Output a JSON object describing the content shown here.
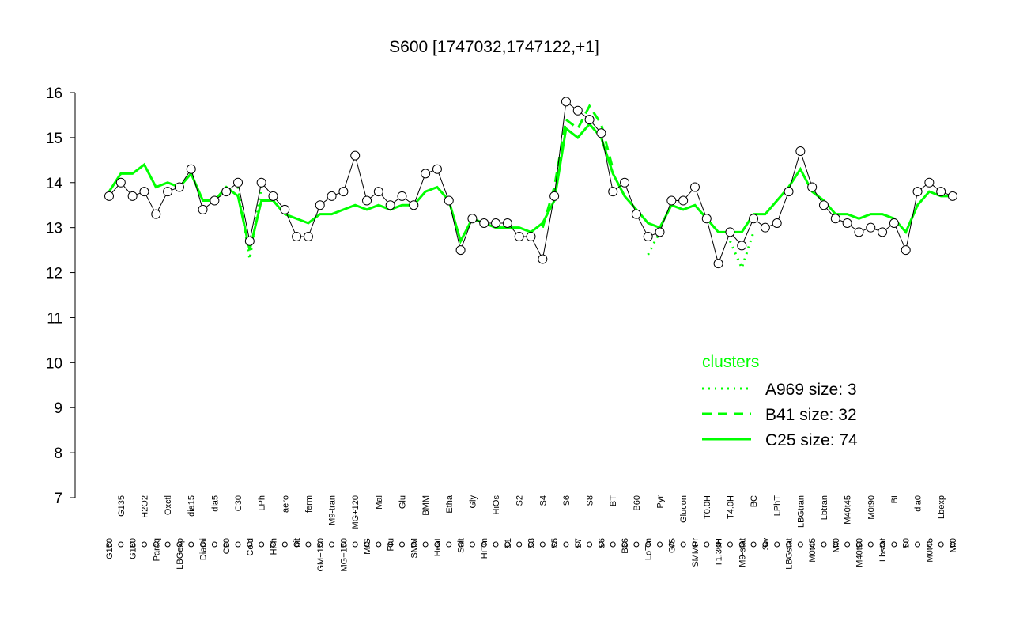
{
  "chart_data": {
    "type": "line",
    "title": "S600 [1747032,1747122,+1]",
    "categories": [
      "G150",
      "G135",
      "G180",
      "H2O2",
      "Paraq",
      "Oxctl",
      "LBGexp",
      "dia15",
      "Diami",
      "dia5",
      "C90",
      "C30",
      "Cold",
      "LPh",
      "HPh",
      "aero",
      "nit",
      "ferm",
      "GM+150",
      "M9-tran",
      "MG+150",
      "MG+120",
      "M/G",
      "Mal",
      "Fru",
      "Glu",
      "SMM",
      "BMM",
      "Heat",
      "Etha",
      "Salt",
      "Gly",
      "HiTm",
      "HiOs",
      "S1",
      "S2",
      "S3",
      "S4",
      "S5",
      "S6",
      "S7",
      "S8",
      "S6",
      "BT",
      "B36",
      "B60",
      "LoTm",
      "Pyr",
      "G/S",
      "Glucon",
      "SMMPr",
      "T0.0H",
      "T1.30H",
      "T4.0H",
      "M9-stat",
      "BC",
      "Sw",
      "LPhT",
      "LBGstat",
      "LBGtran",
      "M0t45",
      "Lbtran",
      "Mt0",
      "M40t45",
      "M40t90",
      "M0t90",
      "Lbstat",
      "BI",
      "S0",
      "dia0",
      "M0t45",
      "Lbexp",
      "Mt0"
    ],
    "values": [
      13.7,
      14.0,
      13.7,
      13.8,
      13.3,
      13.8,
      13.9,
      14.3,
      13.4,
      13.6,
      13.8,
      14.0,
      12.7,
      14.0,
      13.7,
      13.4,
      12.8,
      12.8,
      13.5,
      13.7,
      13.8,
      14.6,
      13.6,
      13.8,
      13.5,
      13.7,
      13.5,
      14.2,
      14.3,
      13.6,
      12.5,
      13.2,
      13.1,
      13.1,
      13.1,
      12.8,
      12.8,
      12.3,
      13.7,
      15.8,
      15.6,
      15.4,
      15.1,
      13.8,
      14.0,
      13.3,
      12.8,
      12.9,
      13.6,
      13.6,
      13.9,
      13.2,
      12.2,
      12.9,
      12.6,
      13.2,
      13.0,
      13.1,
      13.8,
      14.7,
      13.9,
      13.5,
      13.2,
      13.1,
      12.9,
      13.0,
      12.9,
      13.1,
      12.5,
      13.8,
      14.0,
      13.8,
      13.7
    ],
    "color": "#000000",
    "legend_title": "clusters",
    "legend": "right",
    "series": [
      {
        "name": "A969 size: 3",
        "color": "#00ff00",
        "dash": "dotted",
        "values": [
          null,
          null,
          null,
          null,
          null,
          null,
          null,
          null,
          null,
          null,
          null,
          13.9,
          12.3,
          13.9,
          null,
          null,
          null,
          null,
          null,
          null,
          null,
          null,
          null,
          null,
          null,
          null,
          null,
          null,
          null,
          null,
          null,
          null,
          null,
          null,
          null,
          null,
          null,
          null,
          null,
          null,
          null,
          null,
          null,
          null,
          null,
          null,
          12.4,
          12.9,
          null,
          null,
          null,
          null,
          null,
          12.7,
          12.1,
          12.9,
          null,
          null,
          null,
          null,
          null,
          null,
          null,
          null,
          null,
          null,
          null,
          null,
          null,
          null,
          null,
          null,
          null
        ]
      },
      {
        "name": "B41 size: 32",
        "color": "#00ff00",
        "dash": "dashed",
        "values": [
          null,
          null,
          null,
          null,
          null,
          null,
          null,
          null,
          null,
          null,
          null,
          null,
          null,
          null,
          null,
          null,
          null,
          null,
          null,
          null,
          null,
          null,
          null,
          null,
          null,
          null,
          null,
          null,
          null,
          null,
          null,
          null,
          null,
          null,
          null,
          null,
          null,
          13.0,
          13.9,
          15.4,
          15.2,
          15.7,
          15.3,
          14.3,
          null,
          null,
          null,
          null,
          null,
          null,
          null,
          null,
          null,
          null,
          null,
          null,
          null,
          null,
          null,
          null,
          null,
          null,
          null,
          null,
          null,
          null,
          null,
          null,
          null,
          null,
          null,
          null,
          null
        ]
      },
      {
        "name": "C25 size: 74",
        "color": "#00ff00",
        "dash": "solid",
        "values": [
          13.8,
          14.2,
          14.2,
          14.4,
          13.9,
          14.0,
          13.9,
          14.2,
          13.6,
          13.6,
          13.9,
          13.7,
          12.5,
          13.6,
          13.6,
          13.3,
          13.2,
          13.1,
          13.3,
          13.3,
          13.4,
          13.5,
          13.4,
          13.5,
          13.4,
          13.5,
          13.5,
          13.8,
          13.9,
          13.6,
          12.7,
          13.2,
          13.1,
          13.0,
          13.0,
          13.0,
          12.9,
          13.1,
          13.6,
          15.2,
          15.0,
          15.3,
          15.0,
          14.2,
          13.7,
          13.4,
          13.1,
          13.0,
          13.5,
          13.4,
          13.5,
          13.2,
          12.9,
          12.9,
          12.9,
          13.3,
          13.3,
          13.6,
          13.9,
          14.3,
          13.8,
          13.6,
          13.3,
          13.3,
          13.2,
          13.3,
          13.3,
          13.2,
          12.9,
          13.5,
          13.8,
          13.7,
          13.7
        ]
      }
    ],
    "ylim": [
      7,
      16
    ],
    "yticks": [
      7,
      8,
      9,
      10,
      11,
      12,
      13,
      14,
      15,
      16
    ]
  }
}
